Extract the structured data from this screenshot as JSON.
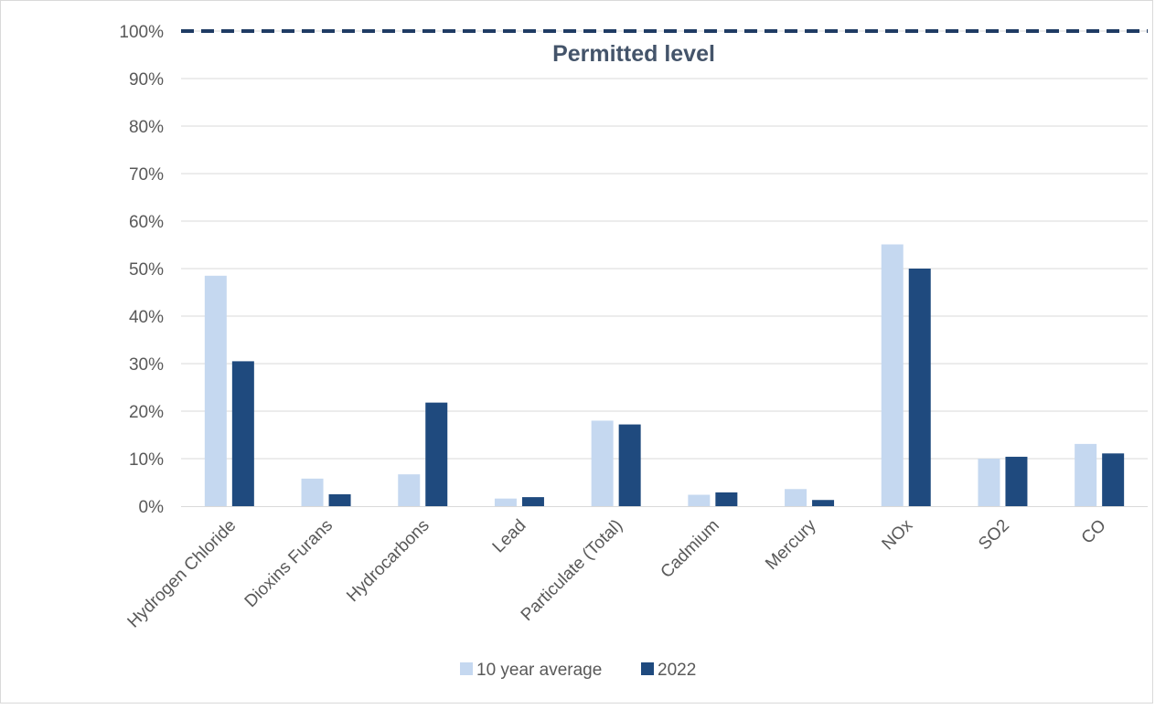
{
  "chart_data": {
    "type": "bar",
    "categories": [
      "Hydrogen Chloride",
      "Dioxins Furans",
      "Hydrocarbons",
      "Lead",
      "Particulate (Total)",
      "Cadmium",
      "Mercury",
      "NOx",
      "SO2",
      "CO"
    ],
    "series": [
      {
        "name": "10 year average",
        "color": "#c5d8f0",
        "values": [
          48.5,
          5.8,
          6.7,
          1.6,
          18.0,
          2.4,
          3.6,
          55.1,
          10.0,
          13.1
        ]
      },
      {
        "name": "2022",
        "color": "#1f4a7e",
        "values": [
          30.5,
          2.5,
          21.8,
          1.9,
          17.2,
          2.9,
          1.3,
          50.0,
          10.4,
          11.1
        ]
      }
    ],
    "ylim": [
      0,
      100
    ],
    "yticks": [
      "0%",
      "10%",
      "20%",
      "30%",
      "40%",
      "50%",
      "60%",
      "70%",
      "80%",
      "90%",
      "100%"
    ],
    "grid": true,
    "legend_position": "bottom",
    "reference_line": {
      "value": 100,
      "label": "Permitted level",
      "color": "#1f3b63",
      "style": "dashed"
    }
  }
}
